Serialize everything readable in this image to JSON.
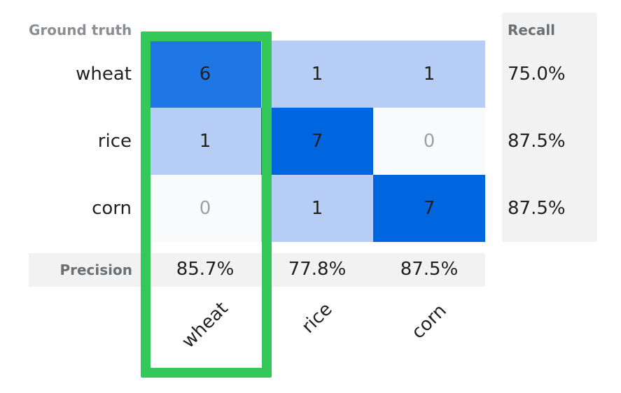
{
  "chart_data": {
    "type": "heatmap",
    "title": "",
    "row_axis_label": "Ground truth",
    "rows": [
      "wheat",
      "rice",
      "corn"
    ],
    "columns": [
      "wheat",
      "rice",
      "corn"
    ],
    "values": [
      [
        6,
        1,
        1
      ],
      [
        1,
        7,
        0
      ],
      [
        0,
        1,
        7
      ]
    ],
    "value_labels": [
      [
        "6",
        "1",
        "1"
      ],
      [
        "1",
        "7",
        "0"
      ],
      [
        "0",
        "1",
        "7"
      ]
    ],
    "recall_label": "Recall",
    "recall": [
      "75.0%",
      "87.5%",
      "87.5%"
    ],
    "precision_label": "Precision",
    "precision": [
      "85.7%",
      "77.8%",
      "87.5%"
    ],
    "highlighted_column": "wheat",
    "colors": {
      "scale_low": "#f9fafc",
      "scale_mid": "#b6cef5",
      "scale_high": "#0066e0",
      "zero_text": "#9aa0a6",
      "highlight": "#34c759",
      "panel": "#f2f2f2"
    }
  }
}
